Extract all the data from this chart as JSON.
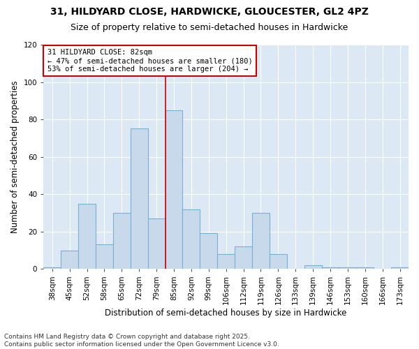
{
  "title1": "31, HILDYARD CLOSE, HARDWICKE, GLOUCESTER, GL2 4PZ",
  "title2": "Size of property relative to semi-detached houses in Hardwicke",
  "xlabel": "Distribution of semi-detached houses by size in Hardwicke",
  "ylabel": "Number of semi-detached properties",
  "categories": [
    "38sqm",
    "45sqm",
    "52sqm",
    "58sqm",
    "65sqm",
    "72sqm",
    "79sqm",
    "85sqm",
    "92sqm",
    "99sqm",
    "106sqm",
    "112sqm",
    "119sqm",
    "126sqm",
    "133sqm",
    "139sqm",
    "146sqm",
    "153sqm",
    "160sqm",
    "166sqm",
    "173sqm"
  ],
  "values": [
    1,
    10,
    35,
    13,
    30,
    75,
    27,
    85,
    32,
    19,
    8,
    12,
    30,
    8,
    0,
    2,
    1,
    1,
    1,
    0,
    1
  ],
  "bar_color": "#c9d9ec",
  "bar_edge_color": "#7aafd4",
  "vline_x": 6.5,
  "annotation_title": "31 HILDYARD CLOSE: 82sqm",
  "annotation_line1": "← 47% of semi-detached houses are smaller (180)",
  "annotation_line2": "53% of semi-detached houses are larger (204) →",
  "annotation_box_color": "#ffffff",
  "annotation_box_edge": "#cc0000",
  "vline_color": "#cc0000",
  "ylim": [
    0,
    120
  ],
  "yticks": [
    0,
    20,
    40,
    60,
    80,
    100,
    120
  ],
  "grid_color": "#ffffff",
  "bg_color": "#dce9f5",
  "fig_bg_color": "#ffffff",
  "footer1": "Contains HM Land Registry data © Crown copyright and database right 2025.",
  "footer2": "Contains public sector information licensed under the Open Government Licence v3.0.",
  "title1_fontsize": 10,
  "title2_fontsize": 9,
  "axis_label_fontsize": 8.5,
  "tick_fontsize": 7.5,
  "footer_fontsize": 6.5,
  "annot_fontsize": 7.5
}
